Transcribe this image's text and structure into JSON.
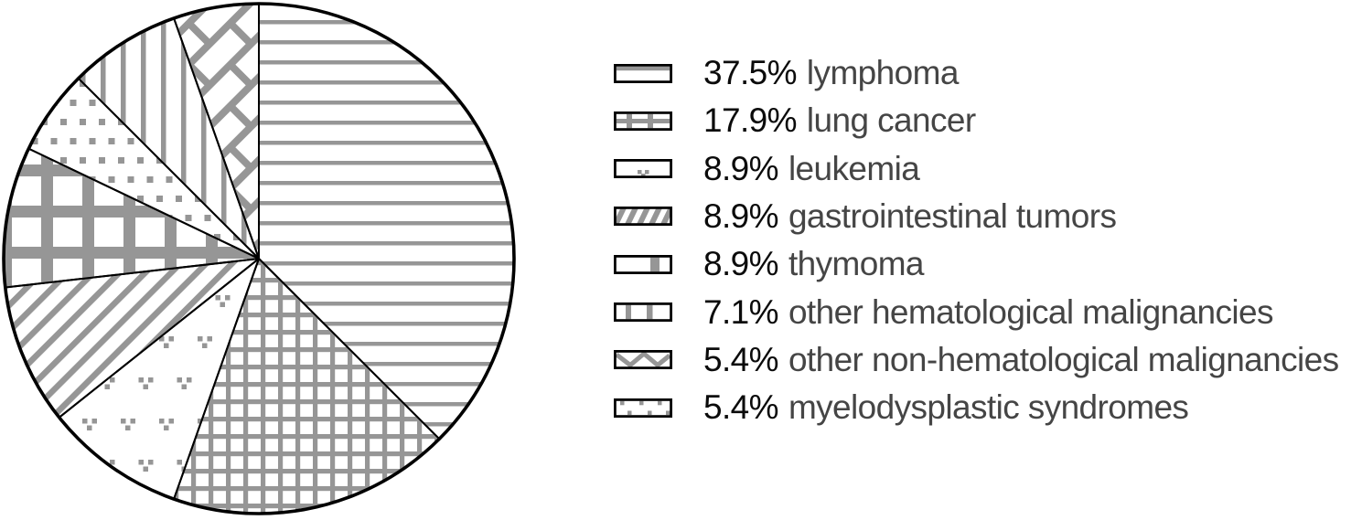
{
  "colors": {
    "pattern_gray": "#969696",
    "outline": "#000000",
    "percent_text": "#0b0b0b",
    "label_text": "#454545",
    "background": "#ffffff"
  },
  "chart_data": {
    "type": "pie",
    "title": "",
    "values_unit": "percent",
    "start_angle_deg": 0,
    "direction": "clockwise",
    "legend_position": "right",
    "slices_draw_order": [
      {
        "label": "lymphoma",
        "value": 37.5,
        "pattern": "horizontal-lines"
      },
      {
        "label": "lung cancer",
        "value": 17.9,
        "pattern": "square-grid"
      },
      {
        "label": "leukemia",
        "value": 8.9,
        "pattern": "dot-triplets"
      },
      {
        "label": "gastrointestinal tumors",
        "value": 8.9,
        "pattern": "diagonal-hatch"
      },
      {
        "label": "thymoma",
        "value": 8.9,
        "pattern": "thick-plaid"
      },
      {
        "label": "myelodysplastic syndromes",
        "value": 5.4,
        "pattern": "staggered-squares"
      },
      {
        "label": "other hematological malignancies",
        "value": 7.1,
        "pattern": "vertical-lines"
      },
      {
        "label": "other non-hematological malignancies",
        "value": 5.4,
        "pattern": "diagonal-brick"
      }
    ]
  },
  "legend": {
    "items": [
      {
        "percent": "37.5%",
        "label": "lymphoma",
        "pattern": "horizontal-lines"
      },
      {
        "percent": "17.9%",
        "label": "lung cancer",
        "pattern": "square-grid"
      },
      {
        "percent": "8.9%",
        "label": "leukemia",
        "pattern": "dot-triplets"
      },
      {
        "percent": "8.9%",
        "label": "gastrointestinal tumors",
        "pattern": "diagonal-hatch"
      },
      {
        "percent": "8.9%",
        "label": "thymoma",
        "pattern": "thick-plaid"
      },
      {
        "percent": "7.1%",
        "label": "other hematological malignancies",
        "pattern": "vertical-lines"
      },
      {
        "percent": "5.4%",
        "label": "other non-hematological malignancies",
        "pattern": "diagonal-brick"
      },
      {
        "percent": "5.4%",
        "label": "myelodysplastic syndromes",
        "pattern": "staggered-squares"
      }
    ]
  }
}
